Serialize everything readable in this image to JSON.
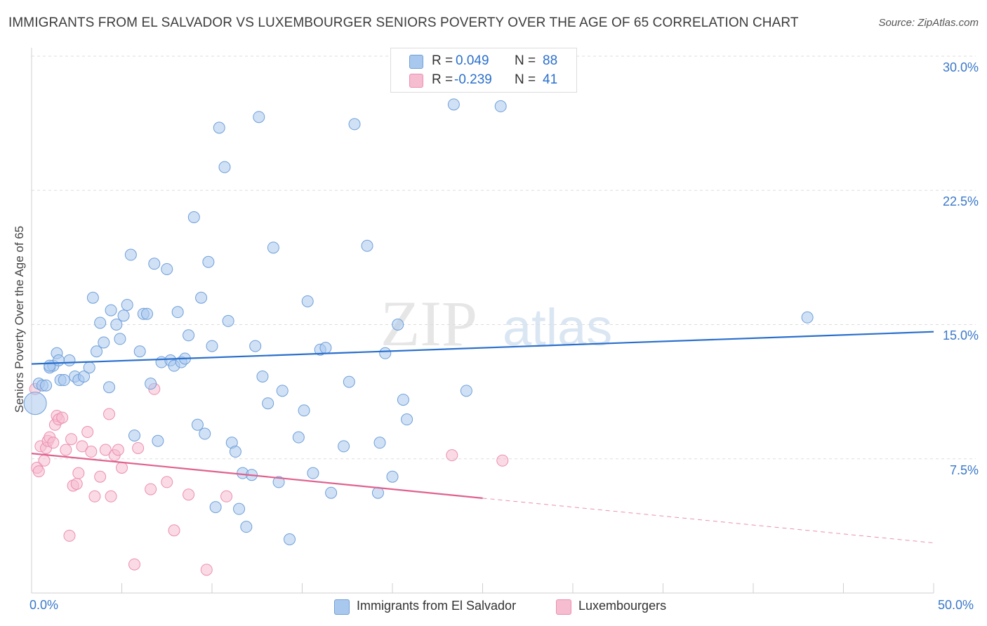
{
  "title": "IMMIGRANTS FROM EL SALVADOR VS LUXEMBOURGER SENIORS POVERTY OVER THE AGE OF 65 CORRELATION CHART",
  "source": "Source: ZipAtlas.com",
  "watermark": "ZIPatlas",
  "colors": {
    "blue_fill": "#a9c8ee",
    "blue_stroke": "#6f9fd8",
    "blue_line": "#2a6fcc",
    "pink_fill": "#f6bcd0",
    "pink_stroke": "#ec8fb0",
    "pink_line": "#e0618f",
    "tick_text": "#3a78c9",
    "grid": "#dddddd"
  },
  "legend": {
    "rows": [
      {
        "r_label": "R =",
        "r_value": "0.049",
        "n_label": "N =",
        "n_value": "88"
      },
      {
        "r_label": "R =",
        "r_value": "-0.239",
        "n_label": "N =",
        "n_value": "41"
      }
    ]
  },
  "bottom_legend": [
    {
      "label": "Immigrants from El Salvador"
    },
    {
      "label": "Luxembourgers"
    }
  ],
  "chart_data": {
    "type": "scatter",
    "title": "IMMIGRANTS FROM EL SALVADOR VS LUXEMBOURGER SENIORS POVERTY OVER THE AGE OF 65 CORRELATION CHART",
    "xlabel": "",
    "ylabel": "Seniors Poverty Over the Age of 65",
    "xlim": [
      0,
      50
    ],
    "ylim": [
      0,
      30
    ],
    "x_tick_labels": [
      "0.0%",
      "50.0%"
    ],
    "y_ticks": [
      7.5,
      15.0,
      22.5,
      30.0
    ],
    "y_tick_labels": [
      "7.5%",
      "15.0%",
      "22.5%",
      "30.0%"
    ],
    "grid": "horizontal dashed",
    "legend_position": "top-center",
    "series": [
      {
        "name": "Immigrants from El Salvador",
        "color": "#a9c8ee",
        "trend": {
          "x": [
            0,
            50
          ],
          "y": [
            12.8,
            14.6
          ]
        },
        "points": [
          [
            0.2,
            10.6
          ],
          [
            0.4,
            11.7
          ],
          [
            0.6,
            11.6
          ],
          [
            0.8,
            11.6
          ],
          [
            1.0,
            12.6
          ],
          [
            1.2,
            12.7
          ],
          [
            1.4,
            13.4
          ],
          [
            1.6,
            11.9
          ],
          [
            1.8,
            11.9
          ],
          [
            2.1,
            13.0
          ],
          [
            2.4,
            12.1
          ],
          [
            2.6,
            11.9
          ],
          [
            2.9,
            12.1
          ],
          [
            3.2,
            12.6
          ],
          [
            3.4,
            16.5
          ],
          [
            3.6,
            13.5
          ],
          [
            3.8,
            15.1
          ],
          [
            4.0,
            14.0
          ],
          [
            4.3,
            11.5
          ],
          [
            4.4,
            15.8
          ],
          [
            4.7,
            15.0
          ],
          [
            4.9,
            14.2
          ],
          [
            5.1,
            15.5
          ],
          [
            5.3,
            16.1
          ],
          [
            5.5,
            18.9
          ],
          [
            5.7,
            8.8
          ],
          [
            6.0,
            13.5
          ],
          [
            6.2,
            15.6
          ],
          [
            6.4,
            15.6
          ],
          [
            6.6,
            11.7
          ],
          [
            6.8,
            18.4
          ],
          [
            7.0,
            8.5
          ],
          [
            7.2,
            12.9
          ],
          [
            7.5,
            18.1
          ],
          [
            7.7,
            13.0
          ],
          [
            7.9,
            12.7
          ],
          [
            8.1,
            15.7
          ],
          [
            8.3,
            12.9
          ],
          [
            8.5,
            13.1
          ],
          [
            8.7,
            14.4
          ],
          [
            9.0,
            21.0
          ],
          [
            9.2,
            9.4
          ],
          [
            9.4,
            16.5
          ],
          [
            9.6,
            8.9
          ],
          [
            9.8,
            18.5
          ],
          [
            10.0,
            13.8
          ],
          [
            10.2,
            4.8
          ],
          [
            10.4,
            26.0
          ],
          [
            10.7,
            23.8
          ],
          [
            10.9,
            15.2
          ],
          [
            11.1,
            8.4
          ],
          [
            11.3,
            7.9
          ],
          [
            11.5,
            4.7
          ],
          [
            11.7,
            6.7
          ],
          [
            11.9,
            3.7
          ],
          [
            12.2,
            6.6
          ],
          [
            12.4,
            13.8
          ],
          [
            12.6,
            26.6
          ],
          [
            12.8,
            12.1
          ],
          [
            13.1,
            10.6
          ],
          [
            13.4,
            19.3
          ],
          [
            13.7,
            6.2
          ],
          [
            13.9,
            11.3
          ],
          [
            14.3,
            3.0
          ],
          [
            14.8,
            8.7
          ],
          [
            15.1,
            10.2
          ],
          [
            15.3,
            16.3
          ],
          [
            15.6,
            6.7
          ],
          [
            16.0,
            13.6
          ],
          [
            16.3,
            13.7
          ],
          [
            16.6,
            5.6
          ],
          [
            17.3,
            8.2
          ],
          [
            17.6,
            11.8
          ],
          [
            17.9,
            26.2
          ],
          [
            18.6,
            19.4
          ],
          [
            19.2,
            5.6
          ],
          [
            19.3,
            8.4
          ],
          [
            19.6,
            13.4
          ],
          [
            20.0,
            6.5
          ],
          [
            20.3,
            15.0
          ],
          [
            20.6,
            10.8
          ],
          [
            20.8,
            9.7
          ],
          [
            23.4,
            27.3
          ],
          [
            24.1,
            11.3
          ],
          [
            26.0,
            27.2
          ],
          [
            43.0,
            15.4
          ],
          [
            1.0,
            12.7
          ],
          [
            1.5,
            13.0
          ]
        ]
      },
      {
        "name": "Luxembourgers",
        "color": "#f6bcd0",
        "trend": {
          "x": [
            0,
            25
          ],
          "y": [
            7.8,
            5.3
          ]
        },
        "trend_dashed": {
          "x": [
            25,
            50
          ],
          "y": [
            5.3,
            2.8
          ]
        },
        "points": [
          [
            0.2,
            11.4
          ],
          [
            0.3,
            7.0
          ],
          [
            0.4,
            6.8
          ],
          [
            0.5,
            8.2
          ],
          [
            0.7,
            7.4
          ],
          [
            0.8,
            8.1
          ],
          [
            0.9,
            8.5
          ],
          [
            1.0,
            8.7
          ],
          [
            1.2,
            8.4
          ],
          [
            1.3,
            9.4
          ],
          [
            1.4,
            9.9
          ],
          [
            1.5,
            9.7
          ],
          [
            1.7,
            9.8
          ],
          [
            1.9,
            8.0
          ],
          [
            2.1,
            3.2
          ],
          [
            2.2,
            8.6
          ],
          [
            2.3,
            6.0
          ],
          [
            2.5,
            6.1
          ],
          [
            2.6,
            6.7
          ],
          [
            2.8,
            8.2
          ],
          [
            3.1,
            9.0
          ],
          [
            3.3,
            7.9
          ],
          [
            3.5,
            5.4
          ],
          [
            3.8,
            6.5
          ],
          [
            4.1,
            8.0
          ],
          [
            4.3,
            10.0
          ],
          [
            4.4,
            5.4
          ],
          [
            4.6,
            7.7
          ],
          [
            4.8,
            8.0
          ],
          [
            5.0,
            7.0
          ],
          [
            5.7,
            1.6
          ],
          [
            5.9,
            8.1
          ],
          [
            6.6,
            5.8
          ],
          [
            6.8,
            11.4
          ],
          [
            7.5,
            6.2
          ],
          [
            7.9,
            3.5
          ],
          [
            8.7,
            5.5
          ],
          [
            9.7,
            1.3
          ],
          [
            10.8,
            5.4
          ],
          [
            23.3,
            7.7
          ],
          [
            26.1,
            7.4
          ]
        ]
      }
    ]
  }
}
